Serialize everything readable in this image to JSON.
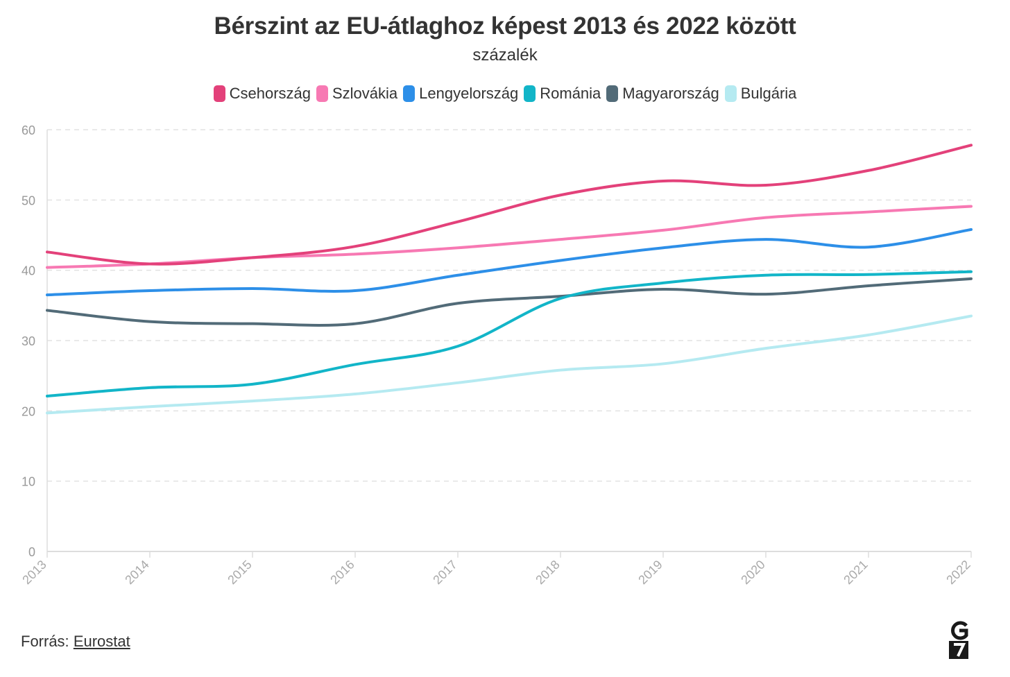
{
  "title": "Bérszint az EU-átlaghoz képest 2013 és 2022 között",
  "subtitle": "százalék",
  "source": {
    "label": "Forrás:",
    "link_text": "Eurostat"
  },
  "logo": {
    "name": "g7-logo",
    "text": "G7"
  },
  "chart_data": {
    "type": "line",
    "title": "Bérszint az EU-átlaghoz képest 2013 és 2022 között",
    "subtitle": "százalék",
    "xlabel": "",
    "ylabel": "",
    "x": [
      2013,
      2014,
      2015,
      2016,
      2017,
      2018,
      2019,
      2020,
      2021,
      2022
    ],
    "ylim": [
      0,
      60
    ],
    "yticks": [
      0,
      10,
      20,
      30,
      40,
      50,
      60
    ],
    "grid": true,
    "legend_position": "top",
    "series": [
      {
        "name": "Csehország",
        "color": "#e3417a",
        "values": [
          42.6,
          40.9,
          41.8,
          43.4,
          46.9,
          50.7,
          52.7,
          52.1,
          54.2,
          57.8
        ]
      },
      {
        "name": "Szlovákia",
        "color": "#f779b3",
        "values": [
          40.4,
          40.9,
          41.8,
          42.3,
          43.2,
          44.4,
          45.7,
          47.5,
          48.3,
          49.1
        ]
      },
      {
        "name": "Lengyelország",
        "color": "#2d8fe8",
        "values": [
          36.5,
          37.1,
          37.4,
          37.1,
          39.3,
          41.4,
          43.2,
          44.4,
          43.3,
          45.8
        ]
      },
      {
        "name": "Románia",
        "color": "#12b5c8",
        "values": [
          22.1,
          23.3,
          23.8,
          26.6,
          29.2,
          36.0,
          38.2,
          39.3,
          39.4,
          39.8
        ]
      },
      {
        "name": "Magyarország",
        "color": "#526b78",
        "values": [
          34.3,
          32.7,
          32.4,
          32.4,
          35.3,
          36.3,
          37.3,
          36.6,
          37.8,
          38.8
        ]
      },
      {
        "name": "Bulgária",
        "color": "#b5eaf1",
        "values": [
          19.7,
          20.6,
          21.4,
          22.4,
          24.0,
          25.8,
          26.7,
          28.9,
          30.8,
          33.5
        ]
      }
    ]
  }
}
